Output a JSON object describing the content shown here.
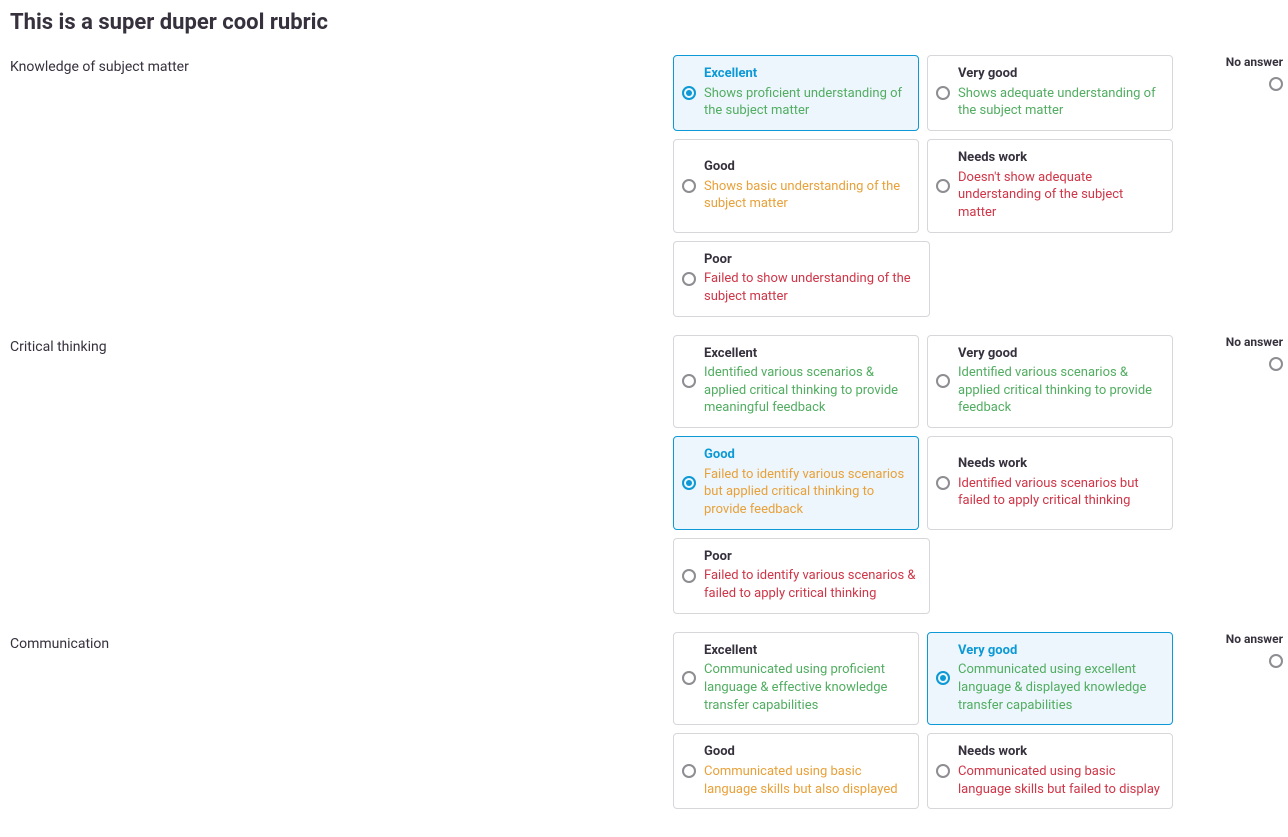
{
  "title": "This is a super duper cool rubric",
  "noAnswerLabel": "No answer",
  "colors": {
    "descGreen": "#52ad62",
    "descOrange": "#e8a13a",
    "descRed": "#cf3648",
    "selectedBorder": "#0d99d6",
    "selectedBg": "#edf6fc",
    "cardBorder": "#d7d7db",
    "text": "#36313d",
    "radioGrey": "#8d8d92"
  },
  "criteria": [
    {
      "label": "Knowledge of subject matter",
      "selectedIndex": 0,
      "options": [
        {
          "title": "Excellent",
          "desc": "Shows proficient understanding of the subject matter",
          "descClass": "desc-green"
        },
        {
          "title": "Very good",
          "desc": "Shows adequate understanding of the subject matter",
          "descClass": "desc-green"
        },
        {
          "title": "Good",
          "desc": "Shows basic understanding of the subject matter",
          "descClass": "desc-orange"
        },
        {
          "title": "Needs work",
          "desc": "Doesn't show adequate understanding of the subject matter",
          "descClass": "desc-red"
        },
        {
          "title": "Poor",
          "desc": "Failed to show understanding of the subject matter",
          "descClass": "desc-red"
        }
      ]
    },
    {
      "label": "Critical thinking",
      "selectedIndex": 2,
      "options": [
        {
          "title": "Excellent",
          "desc": "Identified various scenarios & applied critical thinking to provide meaningful feedback",
          "descClass": "desc-green"
        },
        {
          "title": "Very good",
          "desc": "Identified various scenarios & applied critical thinking to provide feedback",
          "descClass": "desc-green"
        },
        {
          "title": "Good",
          "desc": "Failed to identify various scenarios but applied critical thinking to provide feedback",
          "descClass": "desc-orange"
        },
        {
          "title": "Needs work",
          "desc": "Identified various scenarios but failed to apply critical thinking",
          "descClass": "desc-red"
        },
        {
          "title": "Poor",
          "desc": "Failed to identify various scenarios & failed to apply critical thinking",
          "descClass": "desc-red"
        }
      ]
    },
    {
      "label": "Communication",
      "selectedIndex": 1,
      "options": [
        {
          "title": "Excellent",
          "desc": "Communicated using proficient language & effective knowledge transfer capabilities",
          "descClass": "desc-green"
        },
        {
          "title": "Very good",
          "desc": "Communicated using excellent language & displayed knowledge transfer capabilities",
          "descClass": "desc-green"
        },
        {
          "title": "Good",
          "desc": "Communicated using basic language skills but also displayed",
          "descClass": "desc-orange"
        },
        {
          "title": "Needs work",
          "desc": "Communicated using basic language skills but failed to display",
          "descClass": "desc-red"
        }
      ]
    }
  ]
}
